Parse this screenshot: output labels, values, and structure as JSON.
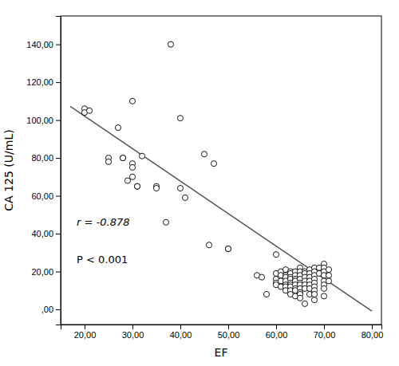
{
  "chart_data": {
    "type": "scatter",
    "xlabel": "EF",
    "ylabel": "CA 125 (U/mL)",
    "xlim": [
      15,
      82
    ],
    "ylim": [
      -8,
      155
    ],
    "xticks": [
      {
        "value": 20,
        "label": "20,00"
      },
      {
        "value": 30,
        "label": "30,00"
      },
      {
        "value": 40,
        "label": "40,00"
      },
      {
        "value": 50,
        "label": "50,00"
      },
      {
        "value": 60,
        "label": "60,00"
      },
      {
        "value": 70,
        "label": "70,00"
      },
      {
        "value": 80,
        "label": "80,00"
      }
    ],
    "yticks": [
      {
        "value": 0,
        "label": ",00"
      },
      {
        "value": 20,
        "label": "20,00"
      },
      {
        "value": 40,
        "label": "40,00"
      },
      {
        "value": 60,
        "label": "60,00"
      },
      {
        "value": 80,
        "label": "80,00"
      },
      {
        "value": 100,
        "label": "100,00"
      },
      {
        "value": 120,
        "label": "120,00"
      },
      {
        "value": 140,
        "label": "140,00"
      }
    ],
    "grid": false,
    "annotations": [
      "r = -0.878",
      "P < 0.001"
    ],
    "series": [
      {
        "type": "scatter",
        "color": "white",
        "marker": "circle",
        "x": [
          20,
          20,
          21,
          25,
          25,
          27,
          28,
          28,
          29,
          30,
          30,
          30,
          30,
          31,
          31,
          32,
          35,
          35,
          37,
          38,
          40,
          40,
          41,
          45,
          46,
          47,
          50,
          50,
          56,
          57,
          58,
          60,
          60,
          60,
          60,
          60,
          61,
          61,
          61,
          61,
          62,
          62,
          62,
          62,
          62,
          62,
          62,
          63,
          63,
          63,
          63,
          63,
          63,
          63,
          63,
          63,
          64,
          64,
          64,
          64,
          64,
          64,
          64,
          64,
          65,
          65,
          65,
          65,
          65,
          65,
          65,
          65,
          65,
          65,
          66,
          66,
          66,
          66,
          66,
          66,
          66,
          67,
          67,
          67,
          67,
          67,
          67,
          67,
          68,
          68,
          68,
          68,
          68,
          68,
          68,
          68,
          68,
          69,
          69,
          70,
          70,
          70,
          70,
          70,
          70,
          70,
          70,
          71,
          71,
          71
        ],
        "values": [
          106,
          104,
          105,
          80,
          78,
          96,
          80,
          80,
          68,
          110,
          77,
          75,
          70,
          65,
          65,
          81,
          65,
          64,
          46,
          140,
          101,
          64,
          59,
          82,
          34,
          77,
          32,
          32,
          18,
          17,
          8,
          29,
          19,
          16,
          14,
          13,
          20,
          18,
          15,
          12,
          21,
          18,
          17,
          15,
          13,
          12,
          10,
          20,
          19,
          17,
          16,
          14,
          13,
          12,
          10,
          8,
          20,
          18,
          16,
          15,
          13,
          11,
          10,
          7,
          22,
          20,
          18,
          16,
          14,
          13,
          11,
          9,
          8,
          6,
          20,
          19,
          17,
          15,
          13,
          11,
          3,
          21,
          19,
          17,
          15,
          13,
          11,
          8,
          22,
          20,
          18,
          16,
          14,
          12,
          10,
          8,
          5,
          22,
          19,
          24,
          22,
          20,
          18,
          15,
          13,
          11,
          7,
          21,
          18,
          15
        ]
      },
      {
        "type": "line",
        "color": "#555555",
        "line_style": "solid",
        "x": [
          17,
          80
        ],
        "values": [
          107.26,
          -0.9
        ]
      }
    ]
  }
}
